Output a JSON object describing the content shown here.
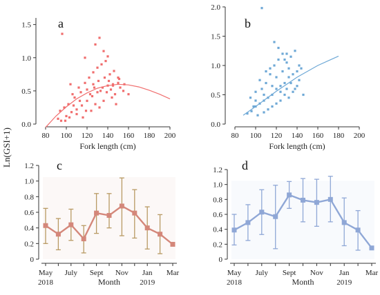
{
  "shared_ylabel": "Ln(GSI+1)",
  "chart_data": [
    {
      "panel": "a",
      "type": "scatter",
      "color": "#f06e6e",
      "xlabel": "Fork length (cm)",
      "xlim": [
        80,
        200
      ],
      "ylim": [
        0,
        1.6
      ],
      "xticks": [
        "80",
        "100",
        "120",
        "140",
        "160",
        "180",
        "200"
      ],
      "yticks": [
        "0.0",
        "0.5",
        "1.0",
        "1.5"
      ],
      "points": [
        [
          95,
          0.05
        ],
        [
          100,
          0.12
        ],
        [
          105,
          0.18
        ],
        [
          110,
          0.22
        ],
        [
          115,
          0.28
        ],
        [
          120,
          0.35
        ],
        [
          125,
          0.42
        ],
        [
          130,
          0.48
        ],
        [
          135,
          0.55
        ],
        [
          140,
          0.58
        ],
        [
          145,
          0.6
        ],
        [
          150,
          0.62
        ],
        [
          92,
          0.08
        ],
        [
          98,
          0.25
        ],
        [
          102,
          0.3
        ],
        [
          108,
          0.4
        ],
        [
          112,
          0.55
        ],
        [
          118,
          0.62
        ],
        [
          122,
          0.7
        ],
        [
          126,
          0.78
        ],
        [
          130,
          0.85
        ],
        [
          134,
          0.9
        ],
        [
          138,
          0.95
        ],
        [
          142,
          0.75
        ],
        [
          146,
          0.8
        ],
        [
          150,
          0.7
        ],
        [
          155,
          0.5
        ],
        [
          160,
          0.45
        ],
        [
          96,
          1.36
        ],
        [
          118,
          1.0
        ],
        [
          128,
          1.2
        ],
        [
          132,
          1.3
        ],
        [
          136,
          1.1
        ],
        [
          140,
          1.02
        ],
        [
          104,
          0.6
        ],
        [
          110,
          0.15
        ],
        [
          116,
          0.1
        ],
        [
          124,
          0.2
        ],
        [
          128,
          0.3
        ],
        [
          132,
          0.25
        ],
        [
          136,
          0.35
        ],
        [
          144,
          0.4
        ],
        [
          148,
          0.3
        ],
        [
          152,
          0.55
        ],
        [
          156,
          0.6
        ],
        [
          106,
          0.45
        ],
        [
          114,
          0.48
        ],
        [
          120,
          0.52
        ],
        [
          126,
          0.6
        ],
        [
          131,
          0.65
        ],
        [
          137,
          0.7
        ],
        [
          141,
          0.65
        ],
        [
          145,
          0.58
        ],
        [
          94,
          0.2
        ],
        [
          99,
          0.05
        ],
        [
          103,
          0.1
        ],
        [
          107,
          0.28
        ],
        [
          113,
          0.35
        ],
        [
          119,
          0.2
        ],
        [
          123,
          0.45
        ],
        [
          127,
          0.55
        ],
        [
          133,
          0.5
        ],
        [
          139,
          0.48
        ],
        [
          143,
          0.52
        ],
        [
          147,
          0.45
        ],
        [
          151,
          0.68
        ]
      ],
      "curve": [
        [
          80,
          -0.05
        ],
        [
          90,
          0.12
        ],
        [
          100,
          0.26
        ],
        [
          110,
          0.38
        ],
        [
          120,
          0.47
        ],
        [
          130,
          0.54
        ],
        [
          140,
          0.58
        ],
        [
          150,
          0.6
        ],
        [
          160,
          0.59
        ],
        [
          170,
          0.56
        ],
        [
          180,
          0.51
        ],
        [
          190,
          0.45
        ],
        [
          200,
          0.38
        ]
      ]
    },
    {
      "panel": "b",
      "type": "scatter",
      "color": "#6ea8d6",
      "xlabel": "Fork length (cm)",
      "xlim": [
        80,
        200
      ],
      "ylim": [
        0,
        2.0
      ],
      "xticks": [
        "80",
        "100",
        "120",
        "140",
        "160",
        "180",
        "200"
      ],
      "yticks": [
        "0.0",
        "0.5",
        "1.0",
        "1.5",
        "2.0"
      ],
      "points": [
        [
          92,
          0.18
        ],
        [
          96,
          0.22
        ],
        [
          100,
          0.3
        ],
        [
          104,
          0.35
        ],
        [
          108,
          0.4
        ],
        [
          112,
          0.45
        ],
        [
          116,
          0.5
        ],
        [
          120,
          0.6
        ],
        [
          124,
          0.65
        ],
        [
          128,
          0.7
        ],
        [
          132,
          0.8
        ],
        [
          136,
          0.85
        ],
        [
          140,
          0.9
        ],
        [
          144,
          0.95
        ],
        [
          95,
          0.45
        ],
        [
          100,
          0.55
        ],
        [
          106,
          0.6
        ],
        [
          110,
          0.7
        ],
        [
          114,
          0.85
        ],
        [
          118,
          1.0
        ],
        [
          122,
          1.1
        ],
        [
          126,
          1.2
        ],
        [
          130,
          1.05
        ],
        [
          134,
          1.15
        ],
        [
          138,
          1.25
        ],
        [
          142,
          1.0
        ],
        [
          146,
          0.5
        ],
        [
          106,
          1.98
        ],
        [
          118,
          1.4
        ],
        [
          122,
          1.3
        ],
        [
          130,
          1.2
        ],
        [
          98,
          0.3
        ],
        [
          102,
          0.15
        ],
        [
          108,
          0.2
        ],
        [
          112,
          0.25
        ],
        [
          116,
          0.3
        ],
        [
          120,
          0.35
        ],
        [
          124,
          0.4
        ],
        [
          128,
          0.5
        ],
        [
          132,
          0.45
        ],
        [
          136,
          0.55
        ],
        [
          140,
          0.65
        ],
        [
          104,
          0.75
        ],
        [
          110,
          0.9
        ],
        [
          114,
          0.95
        ],
        [
          120,
          0.8
        ],
        [
          126,
          0.9
        ],
        [
          134,
          0.7
        ],
        [
          138,
          0.6
        ],
        [
          142,
          0.75
        ],
        [
          100,
          0.4
        ],
        [
          108,
          0.5
        ],
        [
          116,
          0.65
        ],
        [
          124,
          0.55
        ],
        [
          130,
          0.6
        ],
        [
          128,
          1.1
        ],
        [
          132,
          0.95
        ]
      ],
      "curve": [
        [
          88,
          0.15
        ],
        [
          100,
          0.3
        ],
        [
          110,
          0.43
        ],
        [
          120,
          0.56
        ],
        [
          130,
          0.68
        ],
        [
          140,
          0.8
        ],
        [
          150,
          0.9
        ],
        [
          160,
          1.0
        ],
        [
          170,
          1.08
        ],
        [
          180,
          1.16
        ]
      ]
    },
    {
      "panel": "c",
      "type": "line",
      "color": "#d4877a",
      "errcolor": "#b89a63",
      "xlabel": "Month",
      "ylim": [
        0,
        1.2
      ],
      "yticks": [
        "0",
        "0.2",
        "0.4",
        "0.6",
        "0.8",
        "1.0",
        "1.2"
      ],
      "xticks": [
        "May",
        "July",
        "Sept",
        "Nov",
        "Jan",
        "Mar"
      ],
      "year_labels": [
        "2018",
        "2019"
      ],
      "values": [
        0.43,
        0.32,
        0.44,
        0.26,
        0.59,
        0.56,
        0.68,
        0.59,
        0.4,
        0.32,
        0.19
      ],
      "lower": [
        0.2,
        0.12,
        0.24,
        0.08,
        0.33,
        0.4,
        0.3,
        0.27,
        0.13,
        0.07,
        0.18
      ],
      "upper": [
        0.65,
        0.52,
        0.64,
        0.43,
        0.84,
        0.84,
        1.04,
        0.89,
        0.67,
        0.57,
        0.2
      ]
    },
    {
      "panel": "d",
      "type": "line",
      "color": "#8fa7d6",
      "errcolor": "#8fa7d6",
      "xlabel": "Month",
      "ylim": [
        0,
        1.2
      ],
      "yticks": [
        "0",
        "0.2",
        "0.4",
        "0.6",
        "0.8",
        "1.0",
        "1.2"
      ],
      "xticks": [
        "May",
        "July",
        "Sept",
        "Nov",
        "Jan",
        "Mar"
      ],
      "year_labels": [
        "2018",
        "2019"
      ],
      "values": [
        0.39,
        0.49,
        0.63,
        0.57,
        0.86,
        0.79,
        0.76,
        0.8,
        0.49,
        0.39,
        0.15
      ],
      "lower": [
        0.19,
        0.25,
        0.33,
        0.14,
        0.68,
        0.5,
        0.44,
        0.5,
        0.18,
        0.12,
        0.14
      ],
      "upper": [
        0.6,
        0.73,
        0.93,
        0.99,
        1.04,
        1.08,
        1.07,
        1.11,
        0.82,
        0.65,
        0.16
      ]
    }
  ]
}
